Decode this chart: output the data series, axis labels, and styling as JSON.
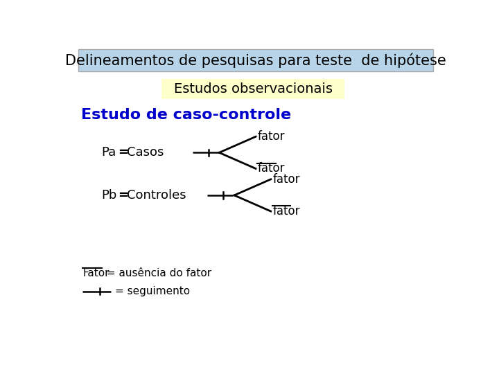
{
  "title": "Delineamentos de pesquisas para teste  de hipótese",
  "subtitle": "Estudos observacionais",
  "heading": "Estudo de caso-controle",
  "title_bg": "#b8d4e8",
  "subtitle_bg": "#ffffcc",
  "heading_color": "#0000cc",
  "bg_color": "#ffffff",
  "pa_label_1": "Pa",
  "pa_label_2": "=",
  "pa_label_3": "Casos",
  "pb_label_1": "Pb",
  "pb_label_2": "=",
  "pb_label_3": "Controles",
  "fator_text": "fator",
  "legend_fator_word": "Fator",
  "legend_fator_rest": " = ausência do fator",
  "legend_seg": "= seguimento"
}
